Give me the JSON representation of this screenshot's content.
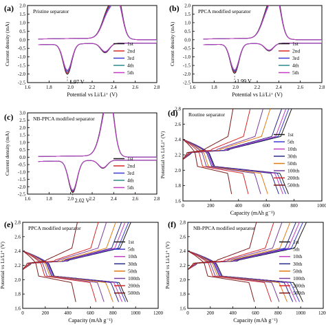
{
  "chart_data": [
    {
      "panel": "(a)",
      "type": "line",
      "title": "Pristine separator",
      "xlabel": "Potential vs Li/Li⁺ (V)",
      "ylabel": "Current density (mA)",
      "xlim": [
        1.6,
        2.8
      ],
      "ylim": [
        -2.5,
        2.0
      ],
      "xticks": [
        "1.6",
        "1.8",
        "2.0",
        "2.2",
        "2.4",
        "2.6",
        "2.8"
      ],
      "yticks": [
        "2.0",
        "1.5",
        "1.0",
        "0.5",
        "0.0",
        "-0.5",
        "-1.0",
        "-1.5",
        "-2.0",
        "-2.5"
      ],
      "annotation": "1.97 V",
      "annotation_x": 1.97,
      "cycles": [
        "1st",
        "2nd",
        "3rd",
        "4th",
        "5th"
      ],
      "colors": [
        "#1a1a1a",
        "#d62728",
        "#3a3ad6",
        "#2a8a8a",
        "#c03cc0"
      ],
      "scale": [
        1.04,
        1.0,
        0.96,
        0.92,
        0.9
      ],
      "ox_peaks": [
        2.36,
        2.45
      ],
      "ox_height": [
        1.7,
        1.78
      ],
      "red_high": 2.32,
      "red_low": 1.97,
      "red_depth": [
        -0.72,
        -2.0
      ]
    },
    {
      "panel": "(b)",
      "type": "line",
      "title": "PPCA modified separator",
      "xlabel": "Potential vs Li/Li⁺ (V)",
      "ylabel": "Current density (mA)",
      "xlim": [
        1.6,
        2.8
      ],
      "ylim": [
        -2.5,
        2.0
      ],
      "xticks": [
        "1.6",
        "1.8",
        "2.0",
        "2.2",
        "2.4",
        "2.6",
        "2.8"
      ],
      "yticks": [
        "2.0",
        "1.5",
        "1.0",
        "0.5",
        "0.0",
        "-0.5",
        "-1.0",
        "-1.5",
        "-2.0",
        "-2.5"
      ],
      "annotation": "1.99 V",
      "annotation_x": 1.99,
      "cycles": [
        "1st",
        "2nd",
        "3rd",
        "4th",
        "5th"
      ],
      "colors": [
        "#1a1a1a",
        "#d62728",
        "#3a3ad6",
        "#2a8a8a",
        "#c03cc0"
      ],
      "scale": [
        1.04,
        1.0,
        0.97,
        0.94,
        0.92
      ],
      "ox_peaks": [
        2.31,
        2.39
      ],
      "ox_height": [
        1.75,
        1.82
      ],
      "red_high": 2.31,
      "red_low": 1.99,
      "red_depth": [
        -0.62,
        -1.95
      ]
    },
    {
      "panel": "(c)",
      "type": "line",
      "title": "NB-PPCA modified separator",
      "xlabel": "",
      "ylabel": "Current density (mA)",
      "xlim": [
        1.6,
        2.8
      ],
      "ylim": [
        -2.5,
        3.0
      ],
      "xticks": [
        "1.6",
        "1.8",
        "2.0",
        "2.2",
        "2.4",
        "2.6",
        "2.8"
      ],
      "yticks": [
        "3.0",
        "2.5",
        "2.0",
        "1.5",
        "1.0",
        "0.5",
        "0.0",
        "-0.5",
        "-1.0",
        "-1.5",
        "-2.0",
        "-2.5"
      ],
      "annotation": "2.02 V",
      "annotation_x": 2.02,
      "cycles": [
        "1st",
        "2nd",
        "3rd",
        "4th",
        "5th"
      ],
      "colors": [
        "#1a1a1a",
        "#d62728",
        "#3a3ad6",
        "#2a8a8a",
        "#c03cc0"
      ],
      "scale": [
        1.03,
        1.0,
        0.98,
        0.96,
        0.95
      ],
      "ox_peaks": [
        2.33,
        2.37
      ],
      "ox_height": [
        2.3,
        2.5
      ],
      "red_high": 2.3,
      "red_low": 2.02,
      "red_depth": [
        -0.72,
        -2.4
      ]
    },
    {
      "panel": "(d)",
      "type": "line",
      "title": "Routine separator",
      "xlabel": "Capacity (mAh g⁻¹)",
      "ylabel": "Potential vs Li/Li⁺ (V)",
      "xlim": [
        0,
        1000
      ],
      "ylim": [
        1.6,
        2.8
      ],
      "xticks": [
        "0",
        "200",
        "400",
        "600",
        "800",
        "1000"
      ],
      "yticks": [
        "2.8",
        "2.6",
        "2.4",
        "2.2",
        "2.0",
        "1.8",
        "1.6"
      ],
      "series": [
        {
          "name": "1st",
          "capacity": 760
        },
        {
          "name": "5th",
          "capacity": 740
        },
        {
          "name": "10th",
          "capacity": 720
        },
        {
          "name": "30th",
          "capacity": 690
        },
        {
          "name": "50th",
          "capacity": 610
        },
        {
          "name": "100th",
          "capacity": 560
        },
        {
          "name": "200th",
          "capacity": 470
        },
        {
          "name": "500th",
          "capacity": 350
        }
      ]
    },
    {
      "panel": "(e)",
      "type": "line",
      "title": "PPCA modified separator",
      "xlabel": "Capacity (mAh g⁻¹)",
      "ylabel": "Potential vs Li/Li⁺ (V)",
      "xlim": [
        0,
        1200
      ],
      "ylim": [
        1.6,
        2.8
      ],
      "xticks": [
        "0",
        "200",
        "400",
        "600",
        "800",
        "1000",
        "1200"
      ],
      "yticks": [
        "2.8",
        "2.6",
        "2.4",
        "2.2",
        "2.0",
        "1.8",
        "1.6"
      ],
      "series": [
        {
          "name": "1st",
          "capacity": 930
        },
        {
          "name": "5th",
          "capacity": 910
        },
        {
          "name": "10th",
          "capacity": 880
        },
        {
          "name": "30th",
          "capacity": 850
        },
        {
          "name": "50th",
          "capacity": 800
        },
        {
          "name": "100th",
          "capacity": 720
        },
        {
          "name": "200th",
          "capacity": 650
        },
        {
          "name": "500th",
          "capacity": 470
        }
      ]
    },
    {
      "panel": "(f)",
      "type": "line",
      "title": "NB-PPCA modified separator",
      "xlabel": "Capacity (mAh g⁻¹)",
      "ylabel": "Potential vs Li/Li⁺ (V)",
      "xlim": [
        0,
        1200
      ],
      "ylim": [
        1.6,
        2.8
      ],
      "xticks": [
        "0",
        "200",
        "400",
        "600",
        "800",
        "1000",
        "1200"
      ],
      "yticks": [
        "2.8",
        "2.6",
        "2.4",
        "2.2",
        "2.0",
        "1.8",
        "1.6"
      ],
      "series": [
        {
          "name": "1st",
          "capacity": 1020
        },
        {
          "name": "5th",
          "capacity": 990
        },
        {
          "name": "10th",
          "capacity": 960
        },
        {
          "name": "30th",
          "capacity": 930
        },
        {
          "name": "50th",
          "capacity": 880
        },
        {
          "name": "100th",
          "capacity": 810
        },
        {
          "name": "200th",
          "capacity": 740
        },
        {
          "name": "500th",
          "capacity": 590
        }
      ]
    }
  ],
  "gcd_colors": [
    "#1a1a1a",
    "#3a3ad6",
    "#c03cc0",
    "#2a2a8a",
    "#e07a10",
    "#7a3c9a",
    "#d62728",
    "#7a1a1a"
  ]
}
